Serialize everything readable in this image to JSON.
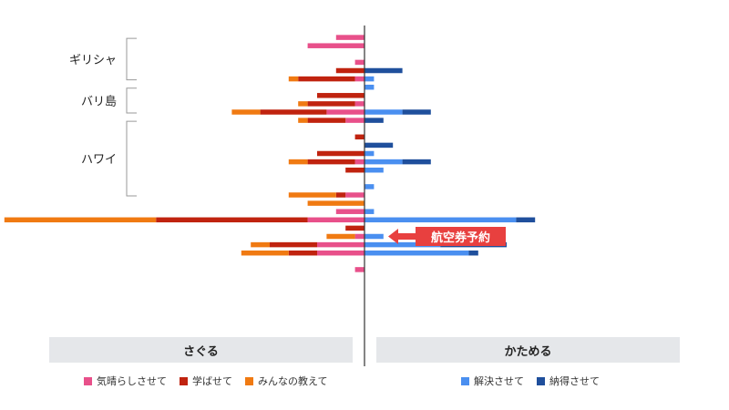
{
  "chart_data": {
    "type": "bar",
    "orientation": "horizontal-diverging",
    "left_panel_label": "さぐる",
    "right_panel_label": "かためる",
    "groups": [
      {
        "label": "ギリシャ",
        "rows": [
          1,
          6
        ]
      },
      {
        "label": "バリ島",
        "rows": [
          7,
          10
        ]
      },
      {
        "label": "ハワイ",
        "rows": [
          11,
          20
        ]
      }
    ],
    "left_series": [
      {
        "name": "気晴らしさせて",
        "color": "#e8508a"
      },
      {
        "name": "学ばせて",
        "color": "#c0230f"
      },
      {
        "name": "みんなの教えて",
        "color": "#f07a12"
      }
    ],
    "right_series": [
      {
        "name": "解決させて",
        "color": "#4a8ff0"
      },
      {
        "name": "納得させて",
        "color": "#1f4f9c"
      }
    ],
    "rows": [
      {
        "left": [
          0,
          0,
          0
        ],
        "right": [
          0,
          0
        ]
      },
      {
        "left": [
          3,
          0,
          0
        ],
        "right": [
          0,
          0
        ]
      },
      {
        "left": [
          6,
          0,
          0
        ],
        "right": [
          0,
          0
        ]
      },
      {
        "left": [
          0,
          0,
          0
        ],
        "right": [
          0,
          0
        ]
      },
      {
        "left": [
          1,
          0,
          0
        ],
        "right": [
          0,
          0
        ]
      },
      {
        "left": [
          0,
          3,
          0
        ],
        "right": [
          0,
          4
        ]
      },
      {
        "left": [
          1,
          6,
          1
        ],
        "right": [
          1,
          0
        ]
      },
      {
        "left": [
          0,
          0,
          0
        ],
        "right": [
          1,
          0
        ]
      },
      {
        "left": [
          0,
          5,
          0
        ],
        "right": [
          0,
          0
        ]
      },
      {
        "left": [
          1,
          5,
          1
        ],
        "right": [
          0,
          0
        ]
      },
      {
        "left": [
          4,
          7,
          3
        ],
        "right": [
          4,
          3
        ]
      },
      {
        "left": [
          2,
          4,
          1
        ],
        "right": [
          0,
          2
        ]
      },
      {
        "left": [
          0,
          0,
          0
        ],
        "right": [
          0,
          0
        ]
      },
      {
        "left": [
          0,
          1,
          0
        ],
        "right": [
          0,
          0
        ]
      },
      {
        "left": [
          0,
          0,
          0
        ],
        "right": [
          0,
          3
        ]
      },
      {
        "left": [
          0,
          5,
          0
        ],
        "right": [
          1,
          0
        ]
      },
      {
        "left": [
          1,
          5,
          2
        ],
        "right": [
          4,
          3
        ]
      },
      {
        "left": [
          0,
          2,
          0
        ],
        "right": [
          2,
          0
        ]
      },
      {
        "left": [
          0,
          0,
          0
        ],
        "right": [
          0,
          0
        ]
      },
      {
        "left": [
          0,
          0,
          0
        ],
        "right": [
          1,
          0
        ]
      },
      {
        "left": [
          2,
          1,
          5
        ],
        "right": [
          0,
          0
        ]
      },
      {
        "left": [
          0,
          0,
          6
        ],
        "right": [
          0,
          0
        ]
      },
      {
        "left": [
          3,
          0,
          0
        ],
        "right": [
          1,
          0
        ]
      },
      {
        "left": [
          6,
          16,
          16
        ],
        "right": [
          16,
          2
        ]
      },
      {
        "left": [
          0,
          2,
          0
        ],
        "right": [
          0,
          0
        ]
      },
      {
        "left": [
          1,
          0,
          3
        ],
        "right": [
          2,
          0
        ]
      },
      {
        "left": [
          5,
          5,
          2
        ],
        "right": [
          8,
          7
        ]
      },
      {
        "left": [
          5,
          3,
          5
        ],
        "right": [
          11,
          1
        ]
      },
      {
        "left": [
          0,
          0,
          0
        ],
        "right": [
          0,
          0
        ]
      },
      {
        "left": [
          1,
          0,
          0
        ],
        "right": [
          0,
          0
        ]
      }
    ],
    "annotation": {
      "text": "航空券予約",
      "row": 19
    }
  }
}
